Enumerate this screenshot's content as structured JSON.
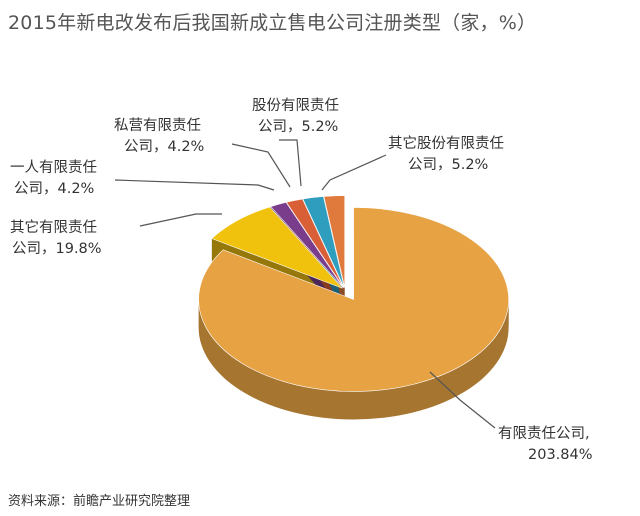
{
  "chart_data": {
    "type": "pie",
    "title": "2015年新电改发布后我国新成立售电公司注册类型（家，%）",
    "slices": [
      {
        "name": "有限责任公司",
        "value_text": "203.84%",
        "value": 203.84,
        "color": "#E6A243"
      },
      {
        "name": "其它有限责任公司",
        "value_text": "19.8%",
        "value": 19.8,
        "color": "#F0C20E"
      },
      {
        "name": "一人有限责任公司",
        "value_text": "4.2%",
        "value": 4.2,
        "color": "#7A3D8C"
      },
      {
        "name": "私营有限责任公司",
        "value_text": "4.2%",
        "value": 4.2,
        "color": "#D95F37"
      },
      {
        "name": "股份有限责任公司",
        "value_text": "5.2%",
        "value": 5.2,
        "color": "#2E9DBE"
      },
      {
        "name": "其它股份有限责任公司",
        "value_text": "5.2%",
        "value": 5.2,
        "color": "#E07A3C"
      }
    ],
    "labels": [
      {
        "line1": "股份有限责任",
        "line2": "公司，5.2%"
      },
      {
        "line1": "私营有限责任",
        "line2": "公司，4.2%"
      },
      {
        "line1": "其它股份有限责任",
        "line2": "公司，5.2%"
      },
      {
        "line1": "一人有限责任",
        "line2": "公司，4.2%"
      },
      {
        "line1": "其它有限责任",
        "line2": "公司，19.8%"
      },
      {
        "line1": "有限责任公司,",
        "line2": "203.84%"
      }
    ]
  },
  "source": "资料来源：前瞻产业研究院整理"
}
